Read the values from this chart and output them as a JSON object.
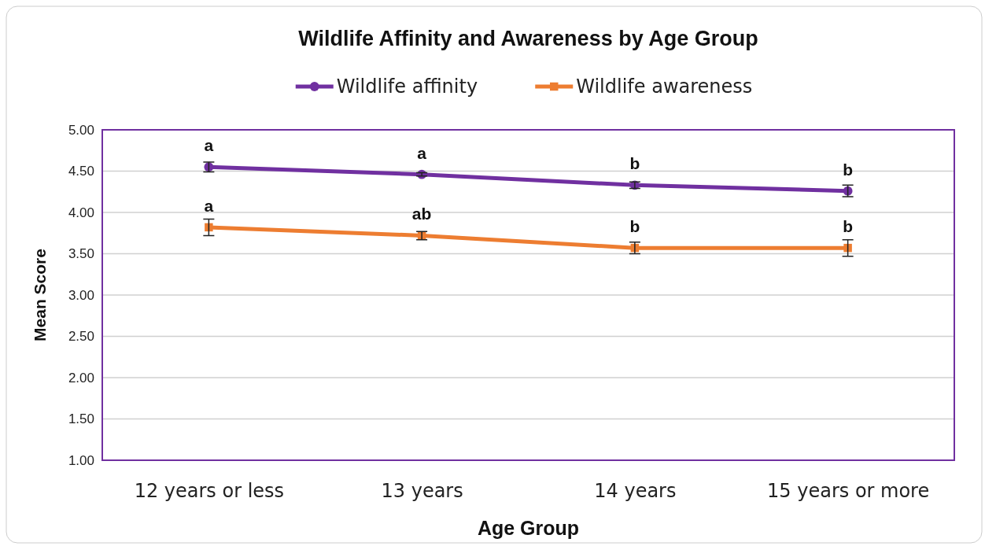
{
  "chart_data": {
    "type": "line",
    "title": "Wildlife Affinity and Awareness by Age Group",
    "xlabel": "Age Group",
    "ylabel": "Mean Score",
    "categories": [
      "12 years or less",
      "13 years",
      "14 years",
      "15 years or more"
    ],
    "series": [
      {
        "name": "Wildlife affinity",
        "color": "#7030a0",
        "marker": "circle",
        "values": [
          4.55,
          4.46,
          4.33,
          4.26
        ],
        "errors": [
          0.06,
          0.02,
          0.04,
          0.07
        ]
      },
      {
        "name": "Wildlife awareness",
        "color": "#ed7d31",
        "marker": "square",
        "values": [
          3.82,
          3.72,
          3.57,
          3.57
        ],
        "errors": [
          0.1,
          0.05,
          0.07,
          0.1
        ]
      }
    ],
    "ylim": [
      1,
      5
    ],
    "yticks": [
      {
        "value": 1,
        "label": "1.00"
      },
      {
        "value": 1.5,
        "label": "1.50"
      },
      {
        "value": 2,
        "label": "2.00"
      },
      {
        "value": 2.5,
        "label": "2.50"
      },
      {
        "value": 3,
        "label": "3.00"
      },
      {
        "value": 3.5,
        "label": "3.50"
      },
      {
        "value": 4,
        "label": "4.00"
      },
      {
        "value": 4.5,
        "label": "4.50"
      },
      {
        "value": 5,
        "label": "5.00"
      }
    ],
    "grid": "y",
    "legend": "top",
    "line_style": "solid",
    "annotations": [
      {
        "text": "a",
        "x": "12 years or less",
        "y": 4.55
      },
      {
        "text": "a",
        "x": "13 years",
        "y": 4.46
      },
      {
        "text": "b",
        "x": "14 years",
        "y": 4.33
      },
      {
        "text": "b",
        "x": "15 years or more",
        "y": 4.26
      },
      {
        "text": "a",
        "x": "12 years or less",
        "y": 3.82
      },
      {
        "text": "ab",
        "x": "13 years",
        "y": 3.72
      },
      {
        "text": "b",
        "x": "14 years",
        "y": 3.57
      },
      {
        "text": "b",
        "x": "15 years or more",
        "y": 3.57
      }
    ]
  }
}
